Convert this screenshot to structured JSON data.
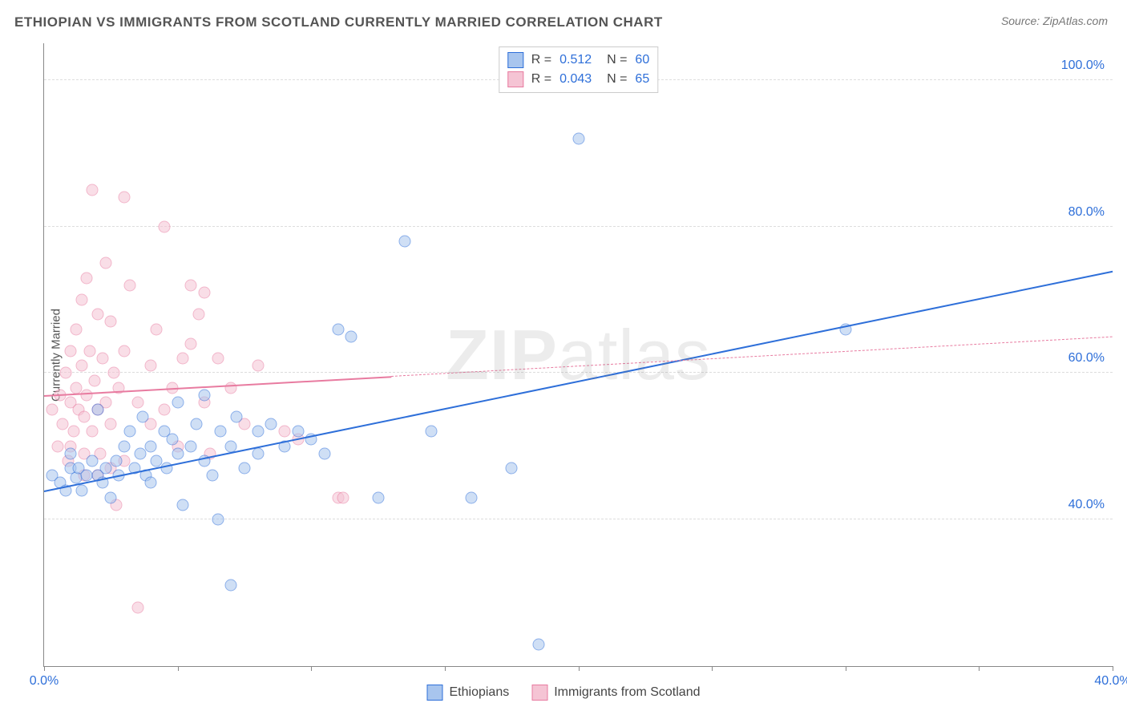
{
  "title": "ETHIOPIAN VS IMMIGRANTS FROM SCOTLAND CURRENTLY MARRIED CORRELATION CHART",
  "source": "Source: ZipAtlas.com",
  "watermark": {
    "bold": "ZIP",
    "thin": "atlas"
  },
  "chart": {
    "type": "scatter",
    "ylabel": "Currently Married",
    "xlim": [
      0,
      40
    ],
    "ylim": [
      20,
      105
    ],
    "xtick_positions": [
      0,
      5,
      10,
      15,
      20,
      25,
      30,
      35,
      40
    ],
    "xtick_labels": {
      "0": "0.0%",
      "40": "40.0%"
    },
    "ytick_positions": [
      40,
      60,
      80,
      100
    ],
    "ytick_labels": [
      "40.0%",
      "60.0%",
      "80.0%",
      "100.0%"
    ],
    "grid_color": "#dddddd",
    "axis_color": "#888888",
    "background_color": "#ffffff",
    "point_radius": 7.5,
    "point_opacity": 0.55,
    "series": [
      {
        "name": "Ethiopians",
        "color_stroke": "#2e6fd9",
        "color_fill": "#a8c5ee",
        "R": "0.512",
        "N": "60",
        "trend": {
          "x1": 0,
          "y1": 44,
          "x2": 40,
          "y2": 74,
          "style": "solid",
          "solid_until_x": 40
        },
        "points": [
          [
            0.3,
            46
          ],
          [
            0.6,
            45
          ],
          [
            0.8,
            44
          ],
          [
            1.0,
            47
          ],
          [
            1.2,
            45.7
          ],
          [
            1.3,
            47
          ],
          [
            1.4,
            44
          ],
          [
            1.6,
            46
          ],
          [
            1.8,
            48
          ],
          [
            2.0,
            46
          ],
          [
            2.2,
            45
          ],
          [
            2.0,
            55
          ],
          [
            2.3,
            47
          ],
          [
            2.5,
            43
          ],
          [
            2.7,
            48
          ],
          [
            2.8,
            46
          ],
          [
            3.0,
            50
          ],
          [
            3.2,
            52
          ],
          [
            3.4,
            47
          ],
          [
            3.6,
            49
          ],
          [
            3.7,
            54
          ],
          [
            3.8,
            46
          ],
          [
            4.0,
            50
          ],
          [
            4.0,
            45
          ],
          [
            4.2,
            48
          ],
          [
            4.5,
            52
          ],
          [
            4.6,
            47
          ],
          [
            4.8,
            51
          ],
          [
            5.0,
            56
          ],
          [
            5.0,
            49
          ],
          [
            5.2,
            42
          ],
          [
            5.5,
            50
          ],
          [
            5.7,
            53
          ],
          [
            6.0,
            48
          ],
          [
            6.0,
            57
          ],
          [
            6.3,
            46
          ],
          [
            6.5,
            40
          ],
          [
            6.6,
            52
          ],
          [
            7.0,
            50
          ],
          [
            7.0,
            31
          ],
          [
            7.2,
            54
          ],
          [
            7.5,
            47
          ],
          [
            8.0,
            52
          ],
          [
            8.0,
            49
          ],
          [
            8.5,
            53
          ],
          [
            9.0,
            50
          ],
          [
            9.5,
            52
          ],
          [
            10.0,
            51
          ],
          [
            10.5,
            49
          ],
          [
            11.0,
            66
          ],
          [
            11.5,
            65
          ],
          [
            12.5,
            43
          ],
          [
            13.5,
            78
          ],
          [
            14.5,
            52
          ],
          [
            16.0,
            43
          ],
          [
            18.5,
            23
          ],
          [
            20.0,
            92
          ],
          [
            30.0,
            66
          ],
          [
            17.5,
            47
          ],
          [
            1.0,
            49
          ]
        ]
      },
      {
        "name": "Immigrants from Scotland",
        "color_stroke": "#e87ba0",
        "color_fill": "#f5c4d4",
        "R": "0.043",
        "N": "65",
        "trend": {
          "x1": 0,
          "y1": 57,
          "x2": 40,
          "y2": 65,
          "style": "solid_then_dashed",
          "solid_until_x": 13
        },
        "points": [
          [
            0.3,
            55
          ],
          [
            0.5,
            50
          ],
          [
            0.6,
            57
          ],
          [
            0.7,
            53
          ],
          [
            0.8,
            60
          ],
          [
            0.9,
            48
          ],
          [
            1.0,
            56
          ],
          [
            1.0,
            63
          ],
          [
            1.1,
            52
          ],
          [
            1.2,
            58
          ],
          [
            1.2,
            66
          ],
          [
            1.3,
            55
          ],
          [
            1.4,
            61
          ],
          [
            1.4,
            70
          ],
          [
            1.5,
            54
          ],
          [
            1.5,
            49
          ],
          [
            1.5,
            46
          ],
          [
            1.6,
            57
          ],
          [
            1.6,
            73
          ],
          [
            1.7,
            63
          ],
          [
            1.8,
            52
          ],
          [
            1.8,
            85
          ],
          [
            1.9,
            59
          ],
          [
            2.0,
            55
          ],
          [
            2.0,
            68
          ],
          [
            2.1,
            49
          ],
          [
            2.2,
            62
          ],
          [
            2.3,
            56
          ],
          [
            2.3,
            75
          ],
          [
            2.5,
            53
          ],
          [
            2.5,
            67
          ],
          [
            2.5,
            47
          ],
          [
            2.6,
            60
          ],
          [
            2.7,
            42
          ],
          [
            2.8,
            58
          ],
          [
            3.0,
            84
          ],
          [
            3.0,
            63
          ],
          [
            3.0,
            48
          ],
          [
            3.2,
            72
          ],
          [
            3.5,
            56
          ],
          [
            3.5,
            28
          ],
          [
            4.0,
            61
          ],
          [
            4.0,
            53
          ],
          [
            4.2,
            66
          ],
          [
            4.5,
            55
          ],
          [
            4.5,
            80
          ],
          [
            4.8,
            58
          ],
          [
            5.0,
            50
          ],
          [
            5.2,
            62
          ],
          [
            5.5,
            64
          ],
          [
            5.5,
            72
          ],
          [
            5.8,
            68
          ],
          [
            6.0,
            56
          ],
          [
            6.0,
            71
          ],
          [
            6.2,
            49
          ],
          [
            6.5,
            62
          ],
          [
            7.0,
            58
          ],
          [
            7.5,
            53
          ],
          [
            8.0,
            61
          ],
          [
            9.0,
            52
          ],
          [
            9.5,
            51
          ],
          [
            11.0,
            43
          ],
          [
            11.2,
            43
          ],
          [
            2.0,
            46
          ],
          [
            1.0,
            50
          ]
        ]
      }
    ]
  },
  "legend_top": {
    "rows": [
      {
        "series": 0,
        "r_label": "R =",
        "n_label": "N ="
      },
      {
        "series": 1,
        "r_label": "R =",
        "n_label": "N ="
      }
    ]
  },
  "legend_bottom": {
    "items": [
      {
        "series": 0
      },
      {
        "series": 1
      }
    ]
  }
}
